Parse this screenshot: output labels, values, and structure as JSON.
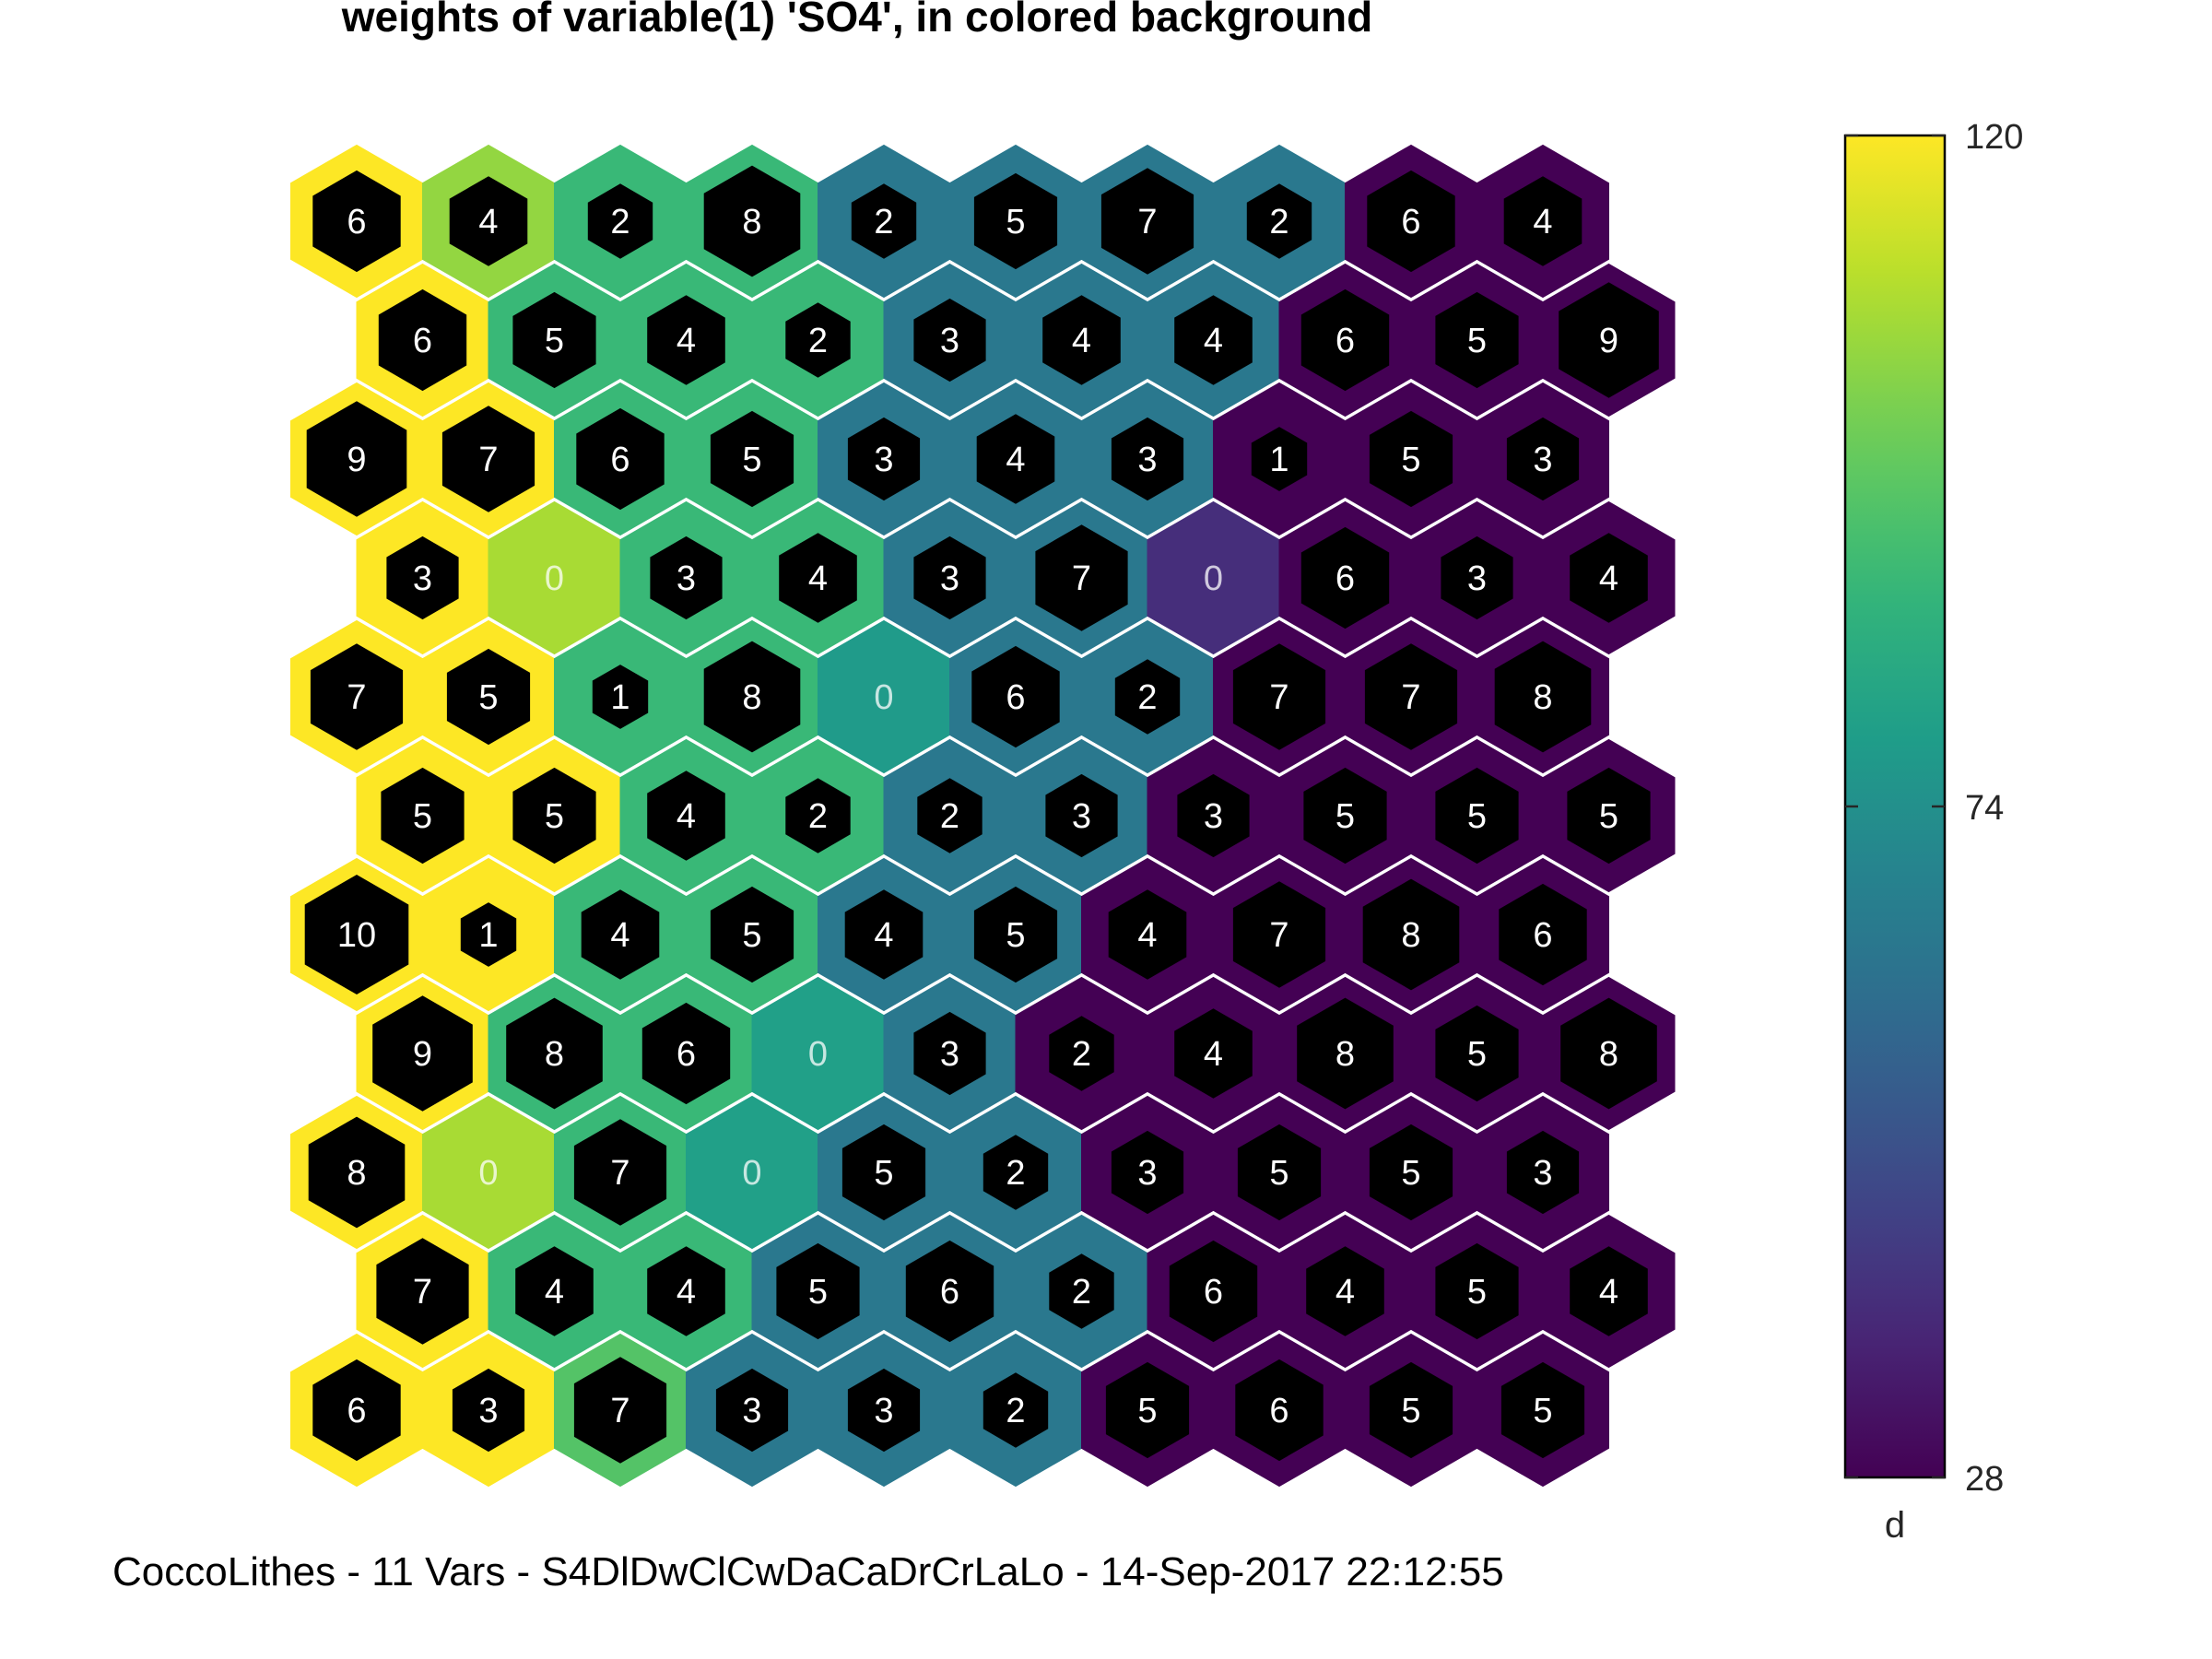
{
  "chart_data": {
    "type": "heatmap",
    "title": "weights of variable(1) 'SO4', in colored background",
    "colorbar": {
      "min": 28,
      "max": 120,
      "ticks": [
        28,
        74,
        120
      ],
      "tick_labels": [
        "28",
        "74",
        "120"
      ],
      "label": "d",
      "colormap": "viridis"
    },
    "grid": {
      "rows": 11,
      "cols": 10
    },
    "weights": [
      [
        120,
        105,
        90,
        90,
        65,
        65,
        65,
        65,
        28,
        28
      ],
      [
        120,
        90,
        90,
        90,
        65,
        65,
        65,
        28,
        28,
        28
      ],
      [
        120,
        120,
        90,
        90,
        65,
        65,
        65,
        28,
        28,
        28
      ],
      [
        120,
        108,
        90,
        90,
        65,
        65,
        40,
        28,
        28,
        28
      ],
      [
        120,
        120,
        90,
        90,
        78,
        65,
        65,
        28,
        28,
        28
      ],
      [
        120,
        120,
        90,
        90,
        65,
        65,
        28,
        28,
        28,
        28
      ],
      [
        120,
        120,
        90,
        90,
        65,
        65,
        28,
        28,
        28,
        28
      ],
      [
        120,
        90,
        90,
        80,
        65,
        28,
        28,
        28,
        28,
        28
      ],
      [
        120,
        108,
        90,
        80,
        65,
        65,
        28,
        28,
        28,
        28
      ],
      [
        120,
        90,
        90,
        65,
        65,
        65,
        28,
        28,
        28,
        28
      ],
      [
        120,
        120,
        95,
        65,
        65,
        65,
        28,
        28,
        28,
        28
      ]
    ],
    "hits": [
      [
        6,
        4,
        2,
        8,
        2,
        5,
        7,
        2,
        6,
        4
      ],
      [
        6,
        5,
        4,
        2,
        3,
        4,
        4,
        6,
        5,
        9
      ],
      [
        9,
        7,
        6,
        5,
        3,
        4,
        3,
        1,
        5,
        3
      ],
      [
        3,
        0,
        3,
        4,
        3,
        7,
        0,
        6,
        3,
        4
      ],
      [
        7,
        5,
        1,
        8,
        0,
        6,
        2,
        7,
        7,
        8
      ],
      [
        5,
        5,
        4,
        2,
        2,
        3,
        3,
        5,
        5,
        5
      ],
      [
        10,
        1,
        4,
        5,
        4,
        5,
        4,
        7,
        8,
        6
      ],
      [
        9,
        8,
        6,
        0,
        3,
        2,
        4,
        8,
        5,
        8
      ],
      [
        8,
        0,
        7,
        0,
        5,
        2,
        3,
        5,
        5,
        3
      ],
      [
        7,
        4,
        4,
        5,
        6,
        2,
        6,
        4,
        5,
        4
      ],
      [
        6,
        3,
        7,
        3,
        3,
        2,
        5,
        6,
        5,
        5
      ]
    ],
    "hit_labels": [
      [
        "6",
        "4",
        "2",
        "8",
        "2",
        "5",
        "7",
        "2",
        "6",
        "4"
      ],
      [
        "6",
        "5",
        "4",
        "2",
        "3",
        "4",
        "4",
        "6",
        "5",
        "9"
      ],
      [
        "9",
        "7",
        "6",
        "5",
        "3",
        "4",
        "3",
        "1",
        "5",
        "3"
      ],
      [
        "3",
        "0",
        "3",
        "4",
        "3",
        "7",
        "0",
        "6",
        "3",
        "4"
      ],
      [
        "7",
        "5",
        "1",
        "8",
        "0",
        "6",
        "2",
        "7",
        "7",
        "8"
      ],
      [
        "5",
        "5",
        "4",
        "2",
        "2",
        "3",
        "3",
        "5",
        "5",
        "5"
      ],
      [
        "10",
        "1",
        "4",
        "5",
        "4",
        "5",
        "4",
        "7",
        "8",
        "6"
      ],
      [
        "9",
        "8",
        "6",
        "0",
        "3",
        "2",
        "4",
        "8",
        "5",
        "8"
      ],
      [
        "8",
        "0",
        "7",
        "0",
        "5",
        "2",
        "3",
        "5",
        "5",
        "3"
      ],
      [
        "7",
        "4",
        "4",
        "5",
        "6",
        "2",
        "6",
        "4",
        "5",
        "4"
      ],
      [
        "6",
        "3",
        "7",
        "3",
        "3",
        "2",
        "5",
        "6",
        "5",
        "5"
      ]
    ]
  },
  "footer": {
    "caption": "CoccoLithes - 11 Vars - S4DlDwClCwDaCaDrCrLaLo - 14-Sep-2017 22:12:55"
  },
  "colors": {
    "hit_marker": "#000000",
    "hit_label": "#ffffff",
    "background": "#ffffff"
  }
}
